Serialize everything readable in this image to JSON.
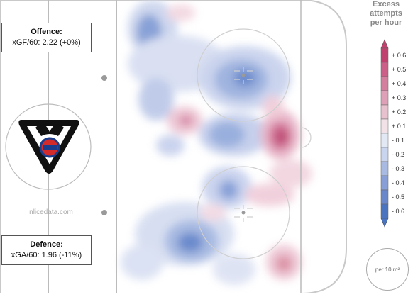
{
  "offence": {
    "title": "Offence:",
    "value": "xGF/60: 2.22 (+0%)"
  },
  "defence": {
    "title": "Defence:",
    "value": "xGA/60: 1.96 (-11%)"
  },
  "watermark": "nlicedata.com",
  "legend": {
    "title_lines": [
      "Excess",
      "attempts",
      "per hour"
    ],
    "per_area": "per 10 m²"
  },
  "colors": {
    "positive": "#c0416e",
    "negative": "#4a74c0",
    "neutral": "#ffffff"
  },
  "chart_data": {
    "type": "heatmap",
    "title": "",
    "colorbar": {
      "title": "Excess attempts per hour",
      "ticks": [
        "+ 0.6",
        "+ 0.5",
        "+ 0.4",
        "+ 0.3",
        "+ 0.2",
        "+ 0.1",
        "- 0.1",
        "- 0.2",
        "- 0.3",
        "- 0.4",
        "- 0.5",
        "- 0.6"
      ],
      "range": [
        -0.6,
        0.6
      ]
    },
    "unit": "per 10 m²"
  }
}
